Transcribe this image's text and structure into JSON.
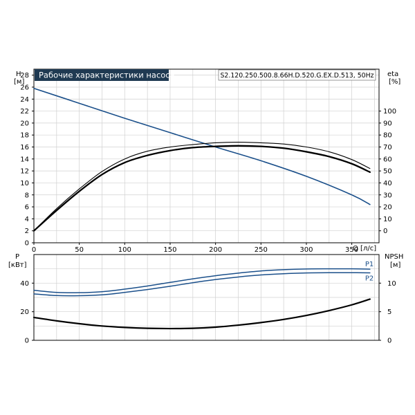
{
  "chart_data": [
    {
      "type": "line",
      "title": "Рабочие характеристики насоса",
      "model": "S2.120.250.500.8.66H.D.520.G.EX.D.513, 50Hz",
      "xlabel": "Q [л/с]",
      "xlim": [
        0,
        380
      ],
      "xticks": [
        "0",
        "50",
        "100",
        "150",
        "200",
        "250",
        "300",
        "350"
      ],
      "ylabel_left": {
        "name": "H",
        "unit": "[м]"
      },
      "ylim_left": [
        0,
        29
      ],
      "yticks_left": [
        "0",
        "2",
        "4",
        "6",
        "8",
        "10",
        "12",
        "14",
        "16",
        "18",
        "20",
        "22",
        "24",
        "26",
        "28"
      ],
      "ylabel_right": {
        "name": "eta",
        "unit": "[%]"
      },
      "ylim_right": [
        -10,
        135
      ],
      "yticks_right": [
        "0",
        "10",
        "20",
        "30",
        "40",
        "50",
        "60",
        "70",
        "80",
        "90",
        "100"
      ],
      "grid": true,
      "series": [
        {
          "axis": "left",
          "color": "#1a4f8a",
          "x": [
            0,
            50,
            100,
            150,
            200,
            250,
            300,
            350,
            370
          ],
          "values": [
            25.8,
            23.3,
            20.8,
            18.4,
            16.0,
            13.7,
            11.1,
            8.0,
            6.4
          ]
        },
        {
          "axis": "right",
          "color": "#000000",
          "x": [
            0,
            25,
            50,
            75,
            100,
            125,
            150,
            175,
            200,
            225,
            250,
            275,
            300,
            325,
            350,
            370
          ],
          "values": [
            0,
            17,
            33,
            47,
            57,
            63,
            67,
            69.5,
            70.5,
            71,
            70.5,
            69,
            66,
            62,
            56,
            49
          ]
        },
        {
          "axis": "right",
          "color": "#000000",
          "x": [
            0,
            25,
            50,
            75,
            100,
            125,
            150,
            175,
            200,
            225,
            250,
            275,
            300,
            325,
            350,
            370
          ],
          "values": [
            0,
            18.5,
            35,
            49.5,
            60,
            66.5,
            70,
            72,
            73.5,
            74,
            73.5,
            72.5,
            70,
            66,
            59.5,
            52
          ]
        }
      ]
    },
    {
      "type": "line",
      "xlim": [
        0,
        380
      ],
      "ylabel_left": {
        "name": "P",
        "unit": "[кВт]"
      },
      "ylim_left": [
        0,
        60
      ],
      "yticks_left": [
        "0",
        "20",
        "40"
      ],
      "ylabel_right": {
        "name": "NPSH",
        "unit": "[м]"
      },
      "ylim_right": [
        0,
        15
      ],
      "yticks_right": [
        "0",
        "5",
        "10"
      ],
      "grid": true,
      "series": [
        {
          "name": "P1",
          "axis": "left",
          "color": "#1a4f8a",
          "x": [
            0,
            25,
            50,
            75,
            100,
            125,
            150,
            175,
            200,
            225,
            250,
            275,
            300,
            325,
            350,
            370
          ],
          "values": [
            35.0,
            33.5,
            33.3,
            34.0,
            35.8,
            38.0,
            40.5,
            43.0,
            45.2,
            47.0,
            48.5,
            49.4,
            49.9,
            50.0,
            50.0,
            49.8
          ]
        },
        {
          "name": "P2",
          "axis": "left",
          "color": "#1a4f8a",
          "x": [
            0,
            25,
            50,
            75,
            100,
            125,
            150,
            175,
            200,
            225,
            250,
            275,
            300,
            325,
            350,
            370
          ],
          "values": [
            32.5,
            31.3,
            31.2,
            31.8,
            33.5,
            35.5,
            37.8,
            40.3,
            42.5,
            44.3,
            45.7,
            46.6,
            47.1,
            47.3,
            47.3,
            47.2
          ]
        },
        {
          "axis": "right",
          "color": "#000000",
          "x": [
            0,
            25,
            50,
            75,
            100,
            125,
            150,
            175,
            200,
            225,
            250,
            275,
            300,
            325,
            350,
            370
          ],
          "values": [
            4.0,
            3.4,
            2.9,
            2.5,
            2.25,
            2.1,
            2.05,
            2.1,
            2.3,
            2.65,
            3.1,
            3.65,
            4.35,
            5.2,
            6.2,
            7.2
          ]
        }
      ]
    }
  ]
}
